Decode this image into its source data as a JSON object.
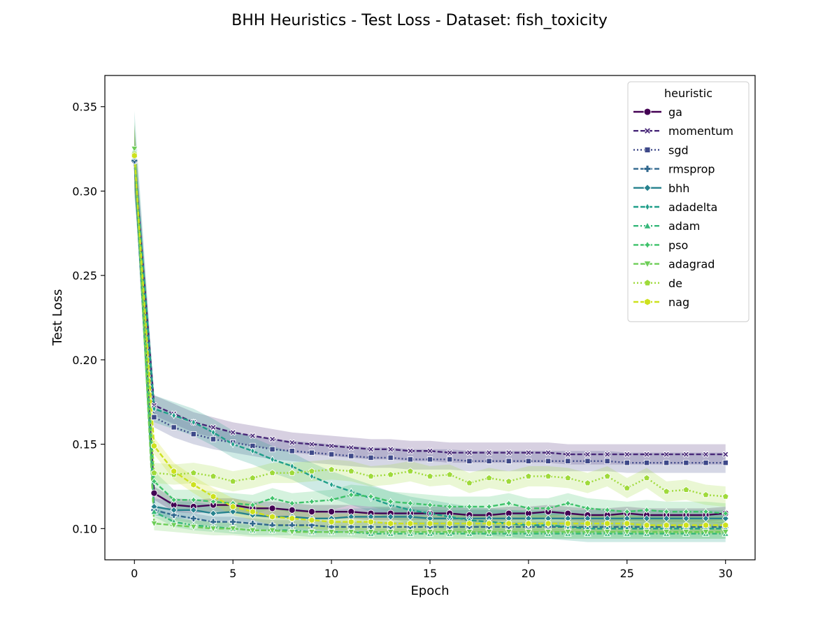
{
  "chart_data": {
    "type": "line",
    "title": "BHH Heuristics - Test Loss - Dataset: fish_toxicity",
    "xlabel": "Epoch",
    "ylabel": "Test Loss",
    "xlim": [
      -1.5,
      31.5
    ],
    "ylim": [
      0.0815,
      0.3685
    ],
    "xticks": [
      0,
      5,
      10,
      15,
      20,
      25,
      30
    ],
    "xtick_labels": [
      "0",
      "5",
      "10",
      "15",
      "20",
      "25",
      "30"
    ],
    "yticks": [
      0.1,
      0.15,
      0.2,
      0.25,
      0.3,
      0.35
    ],
    "ytick_labels": [
      "0.10",
      "0.15",
      "0.20",
      "0.25",
      "0.30",
      "0.35"
    ],
    "grid": false,
    "legend": {
      "title": "heuristic",
      "placement": "top-right"
    },
    "confidence_bands": true,
    "x": [
      0,
      1,
      2,
      3,
      4,
      5,
      6,
      7,
      8,
      9,
      10,
      11,
      12,
      13,
      14,
      15,
      16,
      17,
      18,
      19,
      20,
      21,
      22,
      23,
      24,
      25,
      26,
      27,
      28,
      29,
      30
    ],
    "series": [
      {
        "name": "ga",
        "color": "#440154",
        "marker": "circle",
        "dash": "solid",
        "values": [
          0.32,
          0.121,
          0.114,
          0.113,
          0.114,
          0.114,
          0.112,
          0.112,
          0.111,
          0.11,
          0.11,
          0.11,
          0.109,
          0.109,
          0.109,
          0.109,
          0.109,
          0.108,
          0.108,
          0.109,
          0.109,
          0.11,
          0.109,
          0.108,
          0.108,
          0.109,
          0.108,
          0.108,
          0.108,
          0.108,
          0.109
        ],
        "band": 0.004
      },
      {
        "name": "momentum",
        "color": "#482878",
        "marker": "x",
        "dash": "dash",
        "values": [
          0.32,
          0.173,
          0.168,
          0.163,
          0.16,
          0.157,
          0.155,
          0.153,
          0.151,
          0.15,
          0.149,
          0.148,
          0.147,
          0.147,
          0.146,
          0.146,
          0.145,
          0.145,
          0.145,
          0.145,
          0.145,
          0.145,
          0.144,
          0.144,
          0.144,
          0.144,
          0.144,
          0.144,
          0.144,
          0.144,
          0.144
        ],
        "band": 0.006
      },
      {
        "name": "sgd",
        "color": "#3e4989",
        "marker": "square",
        "dash": "dot",
        "values": [
          0.318,
          0.166,
          0.16,
          0.156,
          0.153,
          0.151,
          0.149,
          0.147,
          0.146,
          0.145,
          0.144,
          0.143,
          0.142,
          0.142,
          0.141,
          0.141,
          0.141,
          0.14,
          0.14,
          0.14,
          0.14,
          0.14,
          0.14,
          0.14,
          0.14,
          0.139,
          0.139,
          0.139,
          0.139,
          0.139,
          0.139
        ],
        "band": 0.006
      },
      {
        "name": "rmsprop",
        "color": "#31688e",
        "marker": "plus",
        "dash": "dash",
        "values": [
          0.318,
          0.111,
          0.108,
          0.106,
          0.104,
          0.104,
          0.103,
          0.102,
          0.102,
          0.102,
          0.101,
          0.101,
          0.101,
          0.101,
          0.101,
          0.101,
          0.101,
          0.101,
          0.101,
          0.101,
          0.101,
          0.101,
          0.101,
          0.101,
          0.101,
          0.101,
          0.101,
          0.101,
          0.101,
          0.101,
          0.101
        ],
        "band": 0.003
      },
      {
        "name": "bhh",
        "color": "#26828e",
        "marker": "diamond",
        "dash": "solid",
        "values": [
          0.32,
          0.113,
          0.111,
          0.111,
          0.109,
          0.11,
          0.108,
          0.107,
          0.107,
          0.106,
          0.106,
          0.107,
          0.107,
          0.107,
          0.107,
          0.106,
          0.106,
          0.106,
          0.106,
          0.106,
          0.106,
          0.106,
          0.106,
          0.106,
          0.106,
          0.106,
          0.106,
          0.106,
          0.106,
          0.106,
          0.106
        ],
        "band": 0.005
      },
      {
        "name": "adadelta",
        "color": "#1f9e89",
        "marker": "thin-diamond",
        "dash": "dash",
        "values": [
          0.322,
          0.171,
          0.167,
          0.163,
          0.157,
          0.15,
          0.146,
          0.141,
          0.137,
          0.131,
          0.126,
          0.122,
          0.118,
          0.114,
          0.111,
          0.109,
          0.107,
          0.105,
          0.104,
          0.103,
          0.102,
          0.102,
          0.101,
          0.1,
          0.1,
          0.1,
          0.1,
          0.1,
          0.1,
          0.1,
          0.1
        ],
        "band": 0.008
      },
      {
        "name": "adam",
        "color": "#35b779",
        "marker": "triangle-up",
        "dash": "dashdot",
        "values": [
          0.324,
          0.11,
          0.104,
          0.102,
          0.101,
          0.1,
          0.099,
          0.099,
          0.099,
          0.098,
          0.098,
          0.098,
          0.097,
          0.097,
          0.097,
          0.097,
          0.097,
          0.097,
          0.097,
          0.097,
          0.097,
          0.097,
          0.097,
          0.097,
          0.097,
          0.097,
          0.097,
          0.097,
          0.097,
          0.097,
          0.097
        ],
        "band": 0.003
      },
      {
        "name": "pso",
        "color": "#3ec26a",
        "marker": "star",
        "dash": "dash",
        "values": [
          0.322,
          0.128,
          0.117,
          0.117,
          0.116,
          0.115,
          0.114,
          0.118,
          0.115,
          0.116,
          0.117,
          0.12,
          0.119,
          0.116,
          0.115,
          0.114,
          0.113,
          0.113,
          0.113,
          0.115,
          0.112,
          0.112,
          0.115,
          0.112,
          0.111,
          0.11,
          0.111,
          0.11,
          0.11,
          0.11,
          0.109
        ],
        "band": 0.006
      },
      {
        "name": "adagrad",
        "color": "#6ece58",
        "marker": "triangle-down",
        "dash": "dash",
        "values": [
          0.325,
          0.103,
          0.102,
          0.101,
          0.1,
          0.1,
          0.099,
          0.099,
          0.098,
          0.098,
          0.098,
          0.098,
          0.098,
          0.098,
          0.098,
          0.098,
          0.098,
          0.098,
          0.098,
          0.098,
          0.098,
          0.098,
          0.098,
          0.098,
          0.098,
          0.098,
          0.098,
          0.098,
          0.098,
          0.098,
          0.098
        ],
        "band": 0.004
      },
      {
        "name": "de",
        "color": "#9fda3a",
        "marker": "pentagon",
        "dash": "dot",
        "values": [
          0.322,
          0.133,
          0.132,
          0.133,
          0.131,
          0.128,
          0.13,
          0.133,
          0.133,
          0.134,
          0.135,
          0.134,
          0.131,
          0.132,
          0.134,
          0.131,
          0.132,
          0.127,
          0.13,
          0.128,
          0.131,
          0.131,
          0.13,
          0.127,
          0.131,
          0.124,
          0.13,
          0.122,
          0.123,
          0.12,
          0.119
        ],
        "band": 0.006
      },
      {
        "name": "nag",
        "color": "#cde11d",
        "marker": "hexagon",
        "dash": "dash",
        "values": [
          0.321,
          0.149,
          0.134,
          0.126,
          0.119,
          0.113,
          0.11,
          0.107,
          0.106,
          0.105,
          0.104,
          0.104,
          0.104,
          0.103,
          0.103,
          0.103,
          0.103,
          0.103,
          0.103,
          0.103,
          0.103,
          0.103,
          0.103,
          0.103,
          0.103,
          0.103,
          0.102,
          0.102,
          0.102,
          0.102,
          0.102
        ],
        "band": 0.005
      }
    ]
  }
}
